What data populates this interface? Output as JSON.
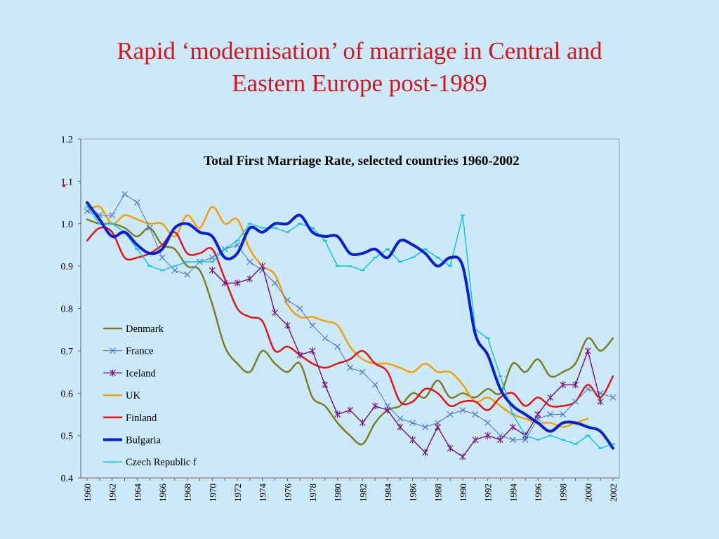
{
  "slide": {
    "title_line1": "Rapid ‘modernisation’ of marriage in Central and",
    "title_line2": "Eastern Europe post-1989"
  },
  "chart_data": {
    "type": "line",
    "title": "Total First Marriage Rate, selected countries 1960-2002",
    "xlabel": "",
    "ylabel": "",
    "xlim": [
      1960,
      2002
    ],
    "ylim": [
      0.4,
      1.2
    ],
    "y_ticks": [
      "0.4",
      "0.5",
      "0.6",
      "0.7",
      "0.8",
      "0.9",
      "1.0",
      "1.1",
      "1.2"
    ],
    "x_tick_years": [
      "1960",
      "1962",
      "1964",
      "1966",
      "1968",
      "1970",
      "1972",
      "1974",
      "1976",
      "1978",
      "1980",
      "1982",
      "1984",
      "1986",
      "1988",
      "1990",
      "1992",
      "1994",
      "1996",
      "1998",
      "2000",
      "2002"
    ],
    "grid": false,
    "legend_position": "left",
    "stray_mark": {
      "x": 1960,
      "y": 1.09,
      "color": "#d0161e"
    },
    "x": [
      1960,
      1961,
      1962,
      1963,
      1964,
      1965,
      1966,
      1967,
      1968,
      1969,
      1970,
      1971,
      1972,
      1973,
      1974,
      1975,
      1976,
      1977,
      1978,
      1979,
      1980,
      1981,
      1982,
      1983,
      1984,
      1985,
      1986,
      1987,
      1988,
      1989,
      1990,
      1991,
      1992,
      1993,
      1994,
      1995,
      1996,
      1997,
      1998,
      1999,
      2000,
      2001,
      2002
    ],
    "series": [
      {
        "name": "Denmark",
        "color": "#7b7e22",
        "width": 2.5,
        "marker": "none",
        "values": [
          1.01,
          1.0,
          1.0,
          0.99,
          0.97,
          0.99,
          0.95,
          0.94,
          0.9,
          0.89,
          0.81,
          0.71,
          0.67,
          0.65,
          0.7,
          0.67,
          0.65,
          0.67,
          0.59,
          0.57,
          0.53,
          0.5,
          0.48,
          0.53,
          0.56,
          0.57,
          0.6,
          0.59,
          0.63,
          0.59,
          0.6,
          0.59,
          0.61,
          0.6,
          0.67,
          0.65,
          0.68,
          0.64,
          0.65,
          0.67,
          0.73,
          0.7,
          0.73
        ]
      },
      {
        "name": "France",
        "color": "#4f78c8",
        "width": 1,
        "marker": "x",
        "values": [
          1.03,
          1.02,
          1.02,
          1.07,
          1.05,
          0.99,
          0.92,
          0.89,
          0.88,
          0.91,
          0.92,
          0.94,
          0.95,
          0.91,
          0.89,
          0.86,
          0.82,
          0.8,
          0.76,
          0.73,
          0.71,
          0.66,
          0.65,
          0.62,
          0.57,
          0.54,
          0.53,
          0.52,
          0.53,
          0.55,
          0.56,
          0.55,
          0.53,
          0.5,
          0.49,
          0.49,
          0.54,
          0.55,
          0.55,
          0.58,
          0.61,
          0.6,
          0.59
        ]
      },
      {
        "name": "Iceland",
        "color": "#7a1a7f",
        "width": 1.5,
        "marker": "star",
        "values": [
          null,
          null,
          null,
          null,
          null,
          null,
          null,
          null,
          null,
          null,
          0.89,
          0.86,
          0.86,
          0.87,
          0.9,
          0.79,
          0.76,
          0.69,
          0.7,
          0.62,
          0.55,
          0.56,
          0.53,
          0.57,
          0.56,
          0.52,
          0.49,
          0.46,
          0.52,
          0.47,
          0.45,
          0.49,
          0.5,
          0.49,
          0.52,
          0.5,
          0.55,
          0.59,
          0.62,
          0.62,
          0.7,
          0.58,
          null
        ]
      },
      {
        "name": "UK",
        "color": "#f59e0b",
        "width": 2.5,
        "marker": "none",
        "values": [
          1.03,
          1.04,
          1.0,
          1.02,
          1.01,
          1.0,
          1.0,
          0.97,
          1.02,
          0.99,
          1.04,
          1.0,
          1.01,
          0.94,
          0.9,
          0.88,
          0.81,
          0.78,
          0.78,
          0.77,
          0.76,
          0.71,
          0.68,
          0.67,
          0.67,
          0.66,
          0.65,
          0.67,
          0.65,
          0.65,
          0.62,
          0.58,
          0.59,
          0.57,
          0.55,
          0.54,
          0.53,
          0.53,
          0.52,
          0.53,
          0.54,
          null,
          null
        ]
      },
      {
        "name": "Finland",
        "color": "#e31515",
        "width": 2.5,
        "marker": "none",
        "values": [
          0.96,
          0.99,
          0.98,
          0.92,
          0.92,
          0.93,
          0.95,
          0.98,
          0.93,
          0.93,
          0.94,
          0.87,
          0.8,
          0.78,
          0.77,
          0.7,
          0.71,
          0.69,
          0.67,
          0.66,
          0.67,
          0.68,
          0.7,
          0.67,
          0.65,
          0.58,
          0.58,
          0.61,
          0.6,
          0.57,
          0.58,
          0.58,
          0.56,
          0.59,
          0.6,
          0.57,
          0.59,
          0.57,
          0.57,
          0.58,
          0.62,
          0.59,
          0.64
        ]
      },
      {
        "name": "Bulgaria",
        "color": "#0a1fd1",
        "width": 4,
        "marker": "none",
        "values": [
          1.05,
          1.01,
          0.97,
          0.98,
          0.95,
          0.93,
          0.94,
          0.99,
          1.0,
          0.98,
          0.97,
          0.92,
          0.93,
          0.99,
          0.98,
          1.0,
          1.0,
          1.02,
          0.98,
          0.97,
          0.97,
          0.93,
          0.93,
          0.94,
          0.92,
          0.96,
          0.95,
          0.93,
          0.9,
          0.92,
          0.9,
          0.74,
          0.69,
          0.61,
          0.57,
          0.55,
          0.53,
          0.51,
          0.53,
          0.53,
          0.52,
          0.51,
          0.47
        ]
      },
      {
        "name": "Czech Republic f",
        "color": "#13c3df",
        "width": 1.5,
        "marker": "dash",
        "values": [
          1.04,
          1.0,
          1.0,
          0.98,
          0.94,
          0.9,
          0.89,
          0.9,
          0.91,
          0.91,
          0.91,
          0.94,
          0.96,
          1.0,
          0.99,
          0.99,
          0.98,
          1.0,
          0.99,
          0.96,
          0.9,
          0.9,
          0.89,
          0.92,
          0.94,
          0.91,
          0.92,
          0.94,
          0.92,
          0.9,
          1.02,
          0.75,
          0.73,
          0.64,
          0.55,
          0.5,
          0.49,
          0.5,
          0.49,
          0.48,
          0.5,
          0.47,
          0.48
        ]
      }
    ]
  }
}
